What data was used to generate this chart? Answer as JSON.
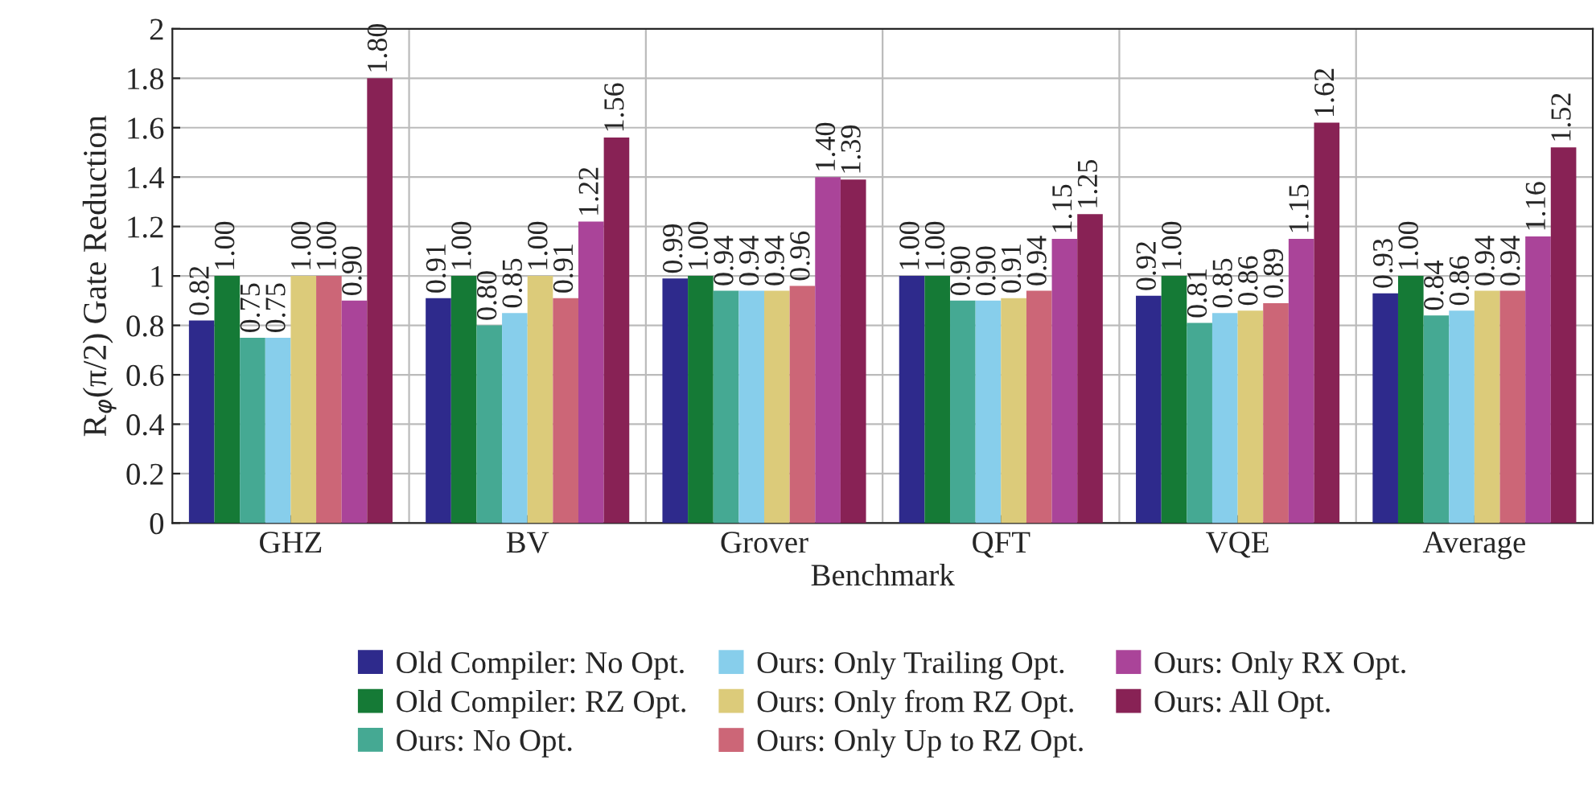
{
  "chart_data": {
    "type": "bar",
    "xlabel": "Benchmark",
    "ylabel": "R$_{φ}$(π/2) Gate Reduction",
    "categories": [
      "GHZ",
      "BV",
      "Grover",
      "QFT",
      "VQE",
      "Average"
    ],
    "series": [
      {
        "name": "Old Compiler: No Opt.",
        "color": "#2e2a8c",
        "values": [
          0.82,
          0.91,
          0.99,
          1.0,
          0.92,
          0.93
        ],
        "value_labels": [
          "0.82",
          "0.91",
          "0.99",
          "1.00",
          "0.92",
          "0.93"
        ]
      },
      {
        "name": "Old Compiler: RZ Opt.",
        "color": "#157a36",
        "values": [
          1.0,
          1.0,
          1.0,
          1.0,
          1.0,
          1.0
        ],
        "value_labels": [
          "1.00",
          "1.00",
          "1.00",
          "1.00",
          "1.00",
          "1.00"
        ]
      },
      {
        "name": "Ours: No Opt.",
        "color": "#45a993",
        "values": [
          0.75,
          0.8,
          0.94,
          0.9,
          0.81,
          0.84
        ],
        "value_labels": [
          "0.75",
          "0.80",
          "0.94",
          "0.90",
          "0.81",
          "0.84"
        ]
      },
      {
        "name": "Ours: Only Trailing Opt.",
        "color": "#87ceeb",
        "values": [
          0.75,
          0.85,
          0.94,
          0.9,
          0.85,
          0.86
        ],
        "value_labels": [
          "0.75",
          "0.85",
          "0.94",
          "0.90",
          "0.85",
          "0.86"
        ]
      },
      {
        "name": "Ours: Only from RZ Opt.",
        "color": "#dccb7a",
        "values": [
          1.0,
          1.0,
          0.94,
          0.91,
          0.86,
          0.94
        ],
        "value_labels": [
          "1.00",
          "1.00",
          "0.94",
          "0.91",
          "0.86",
          "0.94"
        ]
      },
      {
        "name": "Ours: Only Up to RZ Opt.",
        "color": "#cc6677",
        "values": [
          1.0,
          0.91,
          0.96,
          0.94,
          0.89,
          0.94
        ],
        "value_labels": [
          "1.00",
          "0.91",
          "0.96",
          "0.94",
          "0.89",
          "0.94"
        ]
      },
      {
        "name": "Ours: Only RX Opt.",
        "color": "#aa4499",
        "values": [
          0.9,
          1.22,
          1.4,
          1.15,
          1.15,
          1.16
        ],
        "value_labels": [
          "0.90",
          "1.22",
          "1.40",
          "1.15",
          "1.15",
          "1.16"
        ]
      },
      {
        "name": "Ours: All Opt.",
        "color": "#882255",
        "values": [
          1.8,
          1.56,
          1.39,
          1.25,
          1.62,
          1.52
        ],
        "value_labels": [
          "1.80",
          "1.56",
          "1.39",
          "1.25",
          "1.62",
          "1.52"
        ]
      }
    ],
    "ylim": [
      0,
      2
    ],
    "yticks": [
      0,
      0.2,
      0.4,
      0.6,
      0.8,
      1,
      1.2,
      1.4,
      1.6,
      1.8,
      2
    ],
    "grid": true,
    "legend": "bottom"
  }
}
